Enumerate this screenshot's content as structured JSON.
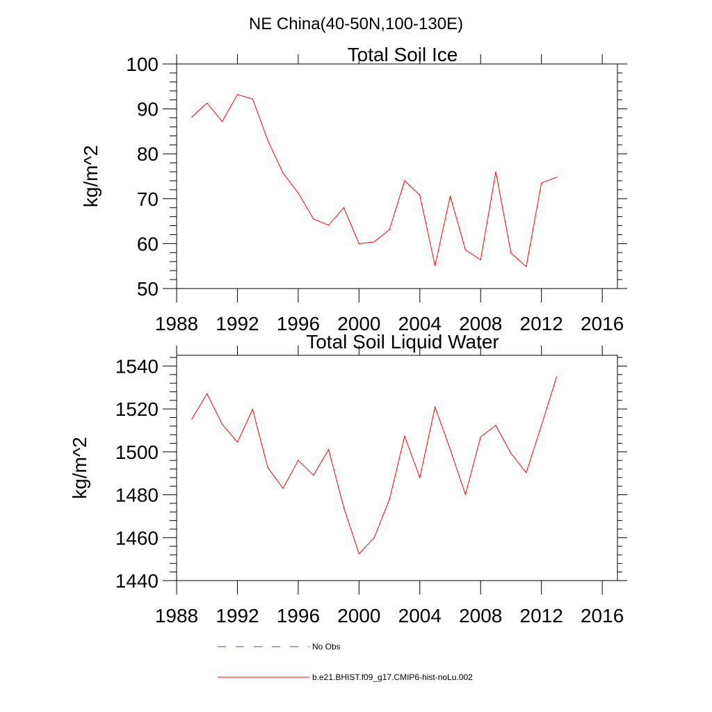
{
  "figure": {
    "suptitle": "NE China(40-50N,100-130E)"
  },
  "chart_data": [
    {
      "type": "line",
      "title": "Total Soil Ice",
      "xlabel": "",
      "ylabel": "kg/m^2",
      "xlim": [
        1988,
        2017
      ],
      "ylim": [
        50,
        100
      ],
      "xticks": [
        1988,
        1992,
        1996,
        2000,
        2004,
        2008,
        2012,
        2016
      ],
      "yticks": [
        50,
        60,
        70,
        80,
        90,
        100
      ],
      "grid": false,
      "x": [
        1989,
        1990,
        1991,
        1992,
        1993,
        1994,
        1995,
        1996,
        1997,
        1998,
        1999,
        2000,
        2001,
        2002,
        2003,
        2004,
        2005,
        2006,
        2007,
        2008,
        2009,
        2010,
        2011,
        2012,
        2013
      ],
      "series": [
        {
          "name": "b.e21.BHIST.f09_g17.CMIP6-hist-noLu.002",
          "color": "#ff0000",
          "values": [
            88.2,
            91.3,
            87.2,
            93.2,
            92.2,
            83.0,
            75.7,
            71.3,
            65.5,
            64.1,
            68.0,
            60.0,
            60.4,
            63.1,
            74.0,
            70.8,
            55.1,
            70.6,
            58.6,
            56.4,
            76.0,
            57.9,
            54.9,
            73.5,
            74.8
          ]
        }
      ]
    },
    {
      "type": "line",
      "title": "Total Soil Liquid Water",
      "xlabel": "",
      "ylabel": "kg/m^2",
      "xlim": [
        1988,
        2017
      ],
      "ylim": [
        1440,
        1545
      ],
      "xticks": [
        1988,
        1992,
        1996,
        2000,
        2004,
        2008,
        2012,
        2016
      ],
      "yticks": [
        1440,
        1460,
        1480,
        1500,
        1520,
        1540
      ],
      "grid": false,
      "x": [
        1989,
        1990,
        1991,
        1992,
        1993,
        1994,
        1995,
        1996,
        1997,
        1998,
        1999,
        2000,
        2001,
        2002,
        2003,
        2004,
        2005,
        2006,
        2007,
        2008,
        2009,
        2010,
        2011,
        2012,
        2013
      ],
      "series": [
        {
          "name": "b.e21.BHIST.f09_g17.CMIP6-hist-noLu.002",
          "color": "#ff0000",
          "values": [
            1515.3,
            1527.1,
            1512.9,
            1504.5,
            1519.8,
            1492.6,
            1483.0,
            1496.1,
            1489.1,
            1501.1,
            1474.0,
            1452.5,
            1460.0,
            1477.8,
            1507.3,
            1488.0,
            1520.9,
            1501.1,
            1480.1,
            1507.0,
            1512.3,
            1499.3,
            1490.3,
            1512.3,
            1535.0
          ]
        }
      ]
    }
  ],
  "legend": {
    "placement": "bottom",
    "entries": [
      {
        "label": "No Obs",
        "color": "#4a4a8a",
        "style": "dashed"
      },
      {
        "label": "b.e21.BHIST.f09_g17.CMIP6-hist-noLu.002",
        "color": "#ff0000",
        "style": "solid"
      }
    ]
  }
}
